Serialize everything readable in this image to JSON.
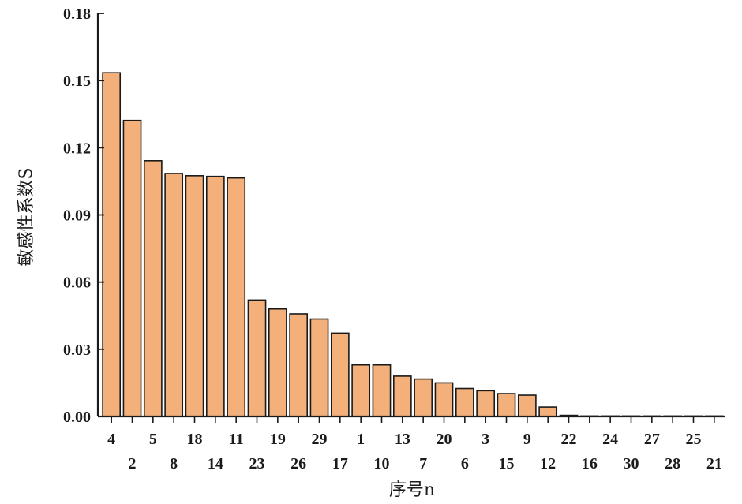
{
  "chart_data": {
    "type": "bar",
    "title": "",
    "xlabel": "序号n",
    "ylabel": "敏感性系数S",
    "categories": [
      "4",
      "2",
      "5",
      "8",
      "18",
      "14",
      "11",
      "23",
      "19",
      "26",
      "29",
      "17",
      "1",
      "10",
      "13",
      "7",
      "20",
      "6",
      "3",
      "15",
      "9",
      "12",
      "22",
      "16",
      "24",
      "30",
      "27",
      "28",
      "25",
      "21"
    ],
    "values": [
      0.1535,
      0.1322,
      0.1142,
      0.1085,
      0.1075,
      0.1072,
      0.1065,
      0.052,
      0.048,
      0.0458,
      0.0435,
      0.0372,
      0.023,
      0.023,
      0.018,
      0.0167,
      0.015,
      0.0125,
      0.0115,
      0.0102,
      0.0095,
      0.0042,
      0.0005,
      0.0002,
      0.0001,
      0.0001,
      0.0001,
      0.0001,
      0.0001,
      0.0001
    ],
    "ylim": [
      0,
      0.18
    ],
    "yticks": [
      "0.00",
      "0.03",
      "0.06",
      "0.09",
      "0.12",
      "0.15",
      "0.18"
    ],
    "bar_color": "#f4b07a",
    "bar_edge_color": "#1a1a1a",
    "grid": false,
    "legend": "none"
  }
}
